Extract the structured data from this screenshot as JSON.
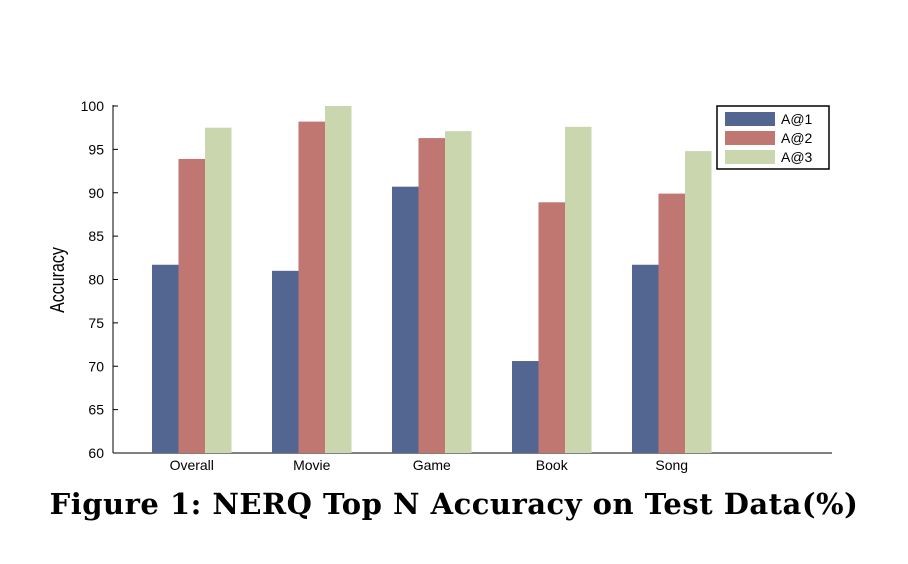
{
  "caption": "Figure 1: NERQ Top N Accuracy on Test Data(%)",
  "chart_data": {
    "type": "bar",
    "ylabel": "Accuracy",
    "xlabel": "",
    "ylim": [
      60,
      100
    ],
    "yticks": [
      60,
      65,
      70,
      75,
      80,
      85,
      90,
      95,
      100
    ],
    "categories": [
      "Overall",
      "Movie",
      "Game",
      "Book",
      "Song"
    ],
    "series": [
      {
        "name": "A@1",
        "color": "#536591",
        "values": [
          81.7,
          81.0,
          90.7,
          70.6,
          81.7
        ]
      },
      {
        "name": "A@2",
        "color": "#c07671",
        "values": [
          93.9,
          98.2,
          96.3,
          88.9,
          89.9
        ]
      },
      {
        "name": "A@3",
        "color": "#c9d6ae",
        "values": [
          97.5,
          100.0,
          97.1,
          97.6,
          94.8
        ]
      }
    ],
    "legend_position": "top-right",
    "grid": false
  }
}
